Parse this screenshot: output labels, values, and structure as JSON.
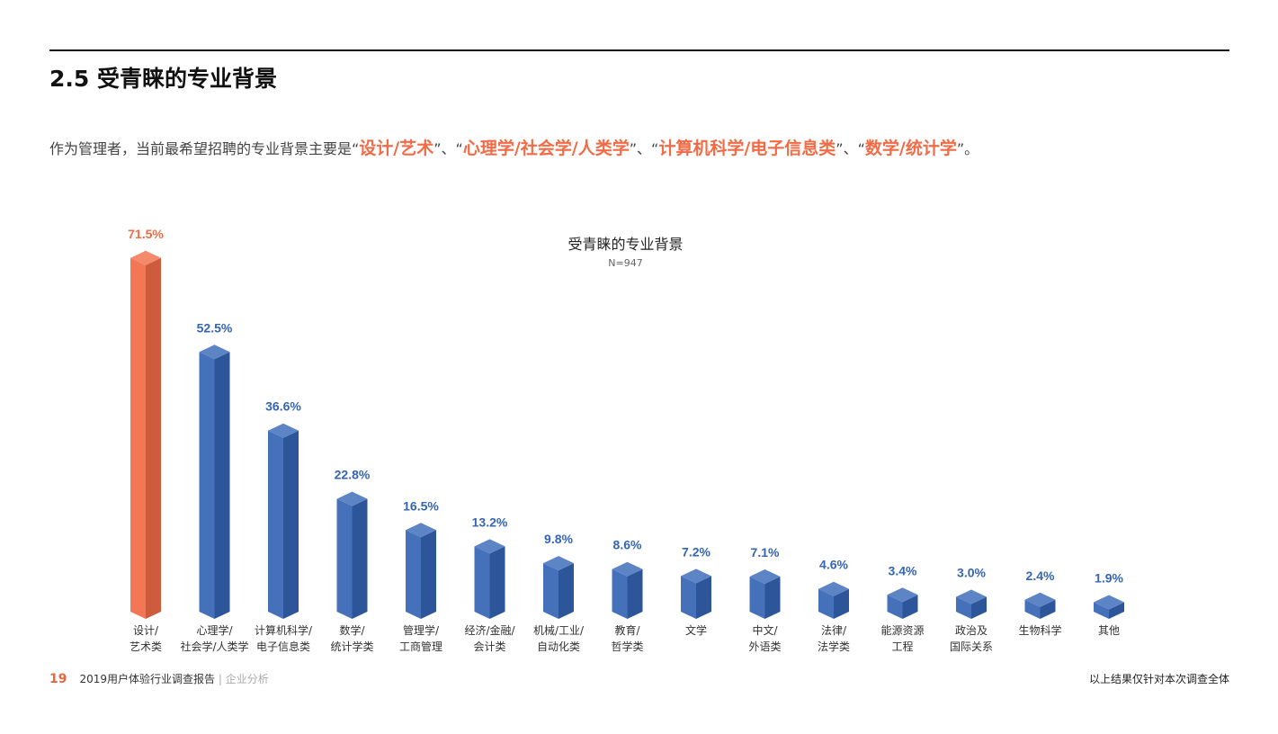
{
  "header": {
    "title": "2.5 受青睐的专业背景"
  },
  "summary": {
    "prefix": "作为管理者，当前最希望招聘的专业背景主要是“",
    "h1": "设计/艺术",
    "sep1": "”、“",
    "h2": "心理学/社会学/人类学",
    "sep2": "”、“",
    "h3": "计算机科学/电子信息类",
    "sep3": "”、“",
    "h4": "数学/统计学",
    "suffix": "”。"
  },
  "chart_data": {
    "type": "bar",
    "title": "受青睐的专业背景",
    "subtitle": "N=947",
    "categories": [
      [
        "设计/",
        "艺术类"
      ],
      [
        "心理学/",
        "社会学/人类学"
      ],
      [
        "计算机科学/",
        "电子信息类"
      ],
      [
        "数学/",
        "统计学类"
      ],
      [
        "管理学/",
        "工商管理"
      ],
      [
        "经济/金融/",
        "会计类"
      ],
      [
        "机械/工业/",
        "自动化类"
      ],
      [
        "教育/",
        "哲学类"
      ],
      [
        "文学",
        ""
      ],
      [
        "中文/",
        "外语类"
      ],
      [
        "法律/",
        "法学类"
      ],
      [
        "能源资源",
        "工程"
      ],
      [
        "政治及",
        "国际关系"
      ],
      [
        "生物科学",
        ""
      ],
      [
        "其他",
        ""
      ]
    ],
    "values": [
      71.5,
      52.5,
      36.6,
      22.8,
      16.5,
      13.2,
      9.8,
      8.6,
      7.2,
      7.1,
      4.6,
      3.4,
      3.0,
      2.4,
      1.9
    ],
    "value_labels": [
      "71.5%",
      "52.5%",
      "36.6%",
      "22.8%",
      "16.5%",
      "13.2%",
      "9.8%",
      "8.6%",
      "7.2%",
      "7.1%",
      "4.6%",
      "3.4%",
      "3.0%",
      "2.4%",
      "1.9%"
    ],
    "unit": "%",
    "highlight_color": "#f26b46",
    "bar_color": "#3565b5",
    "ylim": [
      0,
      75
    ],
    "grid": false
  },
  "footer": {
    "page": "19",
    "report": "2019用户体验行业调查报告",
    "section": "| 企业分析",
    "note": "以上结果仅针对本次调查全体"
  }
}
